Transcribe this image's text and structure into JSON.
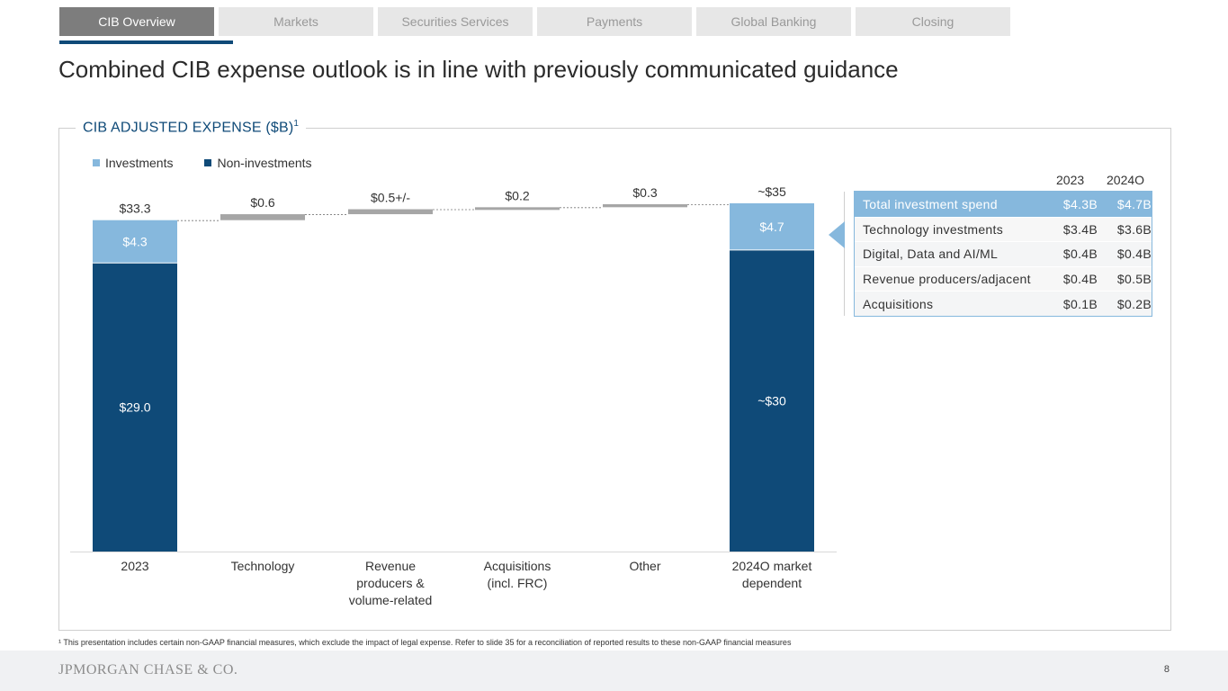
{
  "tabs": [
    {
      "label": "CIB Overview",
      "active": true
    },
    {
      "label": "Markets",
      "active": false
    },
    {
      "label": "Securities Services",
      "active": false
    },
    {
      "label": "Payments",
      "active": false
    },
    {
      "label": "Global Banking",
      "active": false
    },
    {
      "label": "Closing",
      "active": false
    }
  ],
  "page": {
    "title": "Combined CIB expense outlook is in line with previously communicated guidance",
    "number": "8"
  },
  "panel": {
    "title": "CIB ADJUSTED EXPENSE ($B)",
    "title_sup": "1"
  },
  "legend": {
    "investments": "Investments",
    "non_investments": "Non-investments"
  },
  "colors": {
    "investments": "#86b8dd",
    "non_investments": "#0f4a78",
    "step": "#a6a6a6",
    "table_header": "#86b8dd",
    "brand_blue": "#0f4a78"
  },
  "chart_data": {
    "type": "bar",
    "subtype": "waterfall",
    "title": "CIB ADJUSTED EXPENSE ($B)",
    "categories": [
      "2023",
      "Technology",
      "Revenue producers & volume-related",
      "Acquisitions (incl. FRC)",
      "Other",
      "2024O market dependent"
    ],
    "category_lines": [
      [
        "2023"
      ],
      [
        "Technology"
      ],
      [
        "Revenue",
        "producers &",
        "volume-related"
      ],
      [
        "Acquisitions",
        "(incl. FRC)"
      ],
      [
        "Other"
      ],
      [
        "2024O market",
        "dependent"
      ]
    ],
    "start": {
      "non_investments": 29.0,
      "investments": 4.3,
      "total": 33.3,
      "non_investments_label": "$29.0",
      "investments_label": "$4.3",
      "total_label": "$33.3"
    },
    "steps": [
      {
        "value": 0.6,
        "label": "$0.6"
      },
      {
        "value": 0.5,
        "label": "$0.5+/-"
      },
      {
        "value": 0.2,
        "label": "$0.2"
      },
      {
        "value": 0.3,
        "label": "$0.3"
      }
    ],
    "end": {
      "non_investments": 30.3,
      "investments": 4.7,
      "total": 35.0,
      "non_investments_label": "~$30",
      "investments_label": "$4.7",
      "total_label": "~$35"
    },
    "ylim": [
      0,
      35
    ],
    "xlabel": "",
    "ylabel": "",
    "legend_position": "top-left",
    "grid": false
  },
  "investment_table": {
    "columns": [
      "",
      "2023",
      "2024O"
    ],
    "rows": [
      {
        "label": "Total investment spend",
        "y2023": "$4.3B",
        "y2024": "$4.7B",
        "header": true
      },
      {
        "label": "Technology investments",
        "y2023": "$3.4B",
        "y2024": "$3.6B"
      },
      {
        "label": "Digital, Data and AI/ML",
        "y2023": "$0.4B",
        "y2024": "$0.4B"
      },
      {
        "label": "Revenue producers/adjacent",
        "y2023": "$0.4B",
        "y2024": "$0.5B"
      },
      {
        "label": "Acquisitions",
        "y2023": "$0.1B",
        "y2024": "$0.2B"
      }
    ]
  },
  "footnote": "¹ This presentation includes certain non-GAAP financial measures, which exclude the impact of legal expense. Refer to slide 35 for a reconciliation of reported results to these non-GAAP financial measures",
  "footer": {
    "logo": "JPMORGAN CHASE & CO."
  }
}
